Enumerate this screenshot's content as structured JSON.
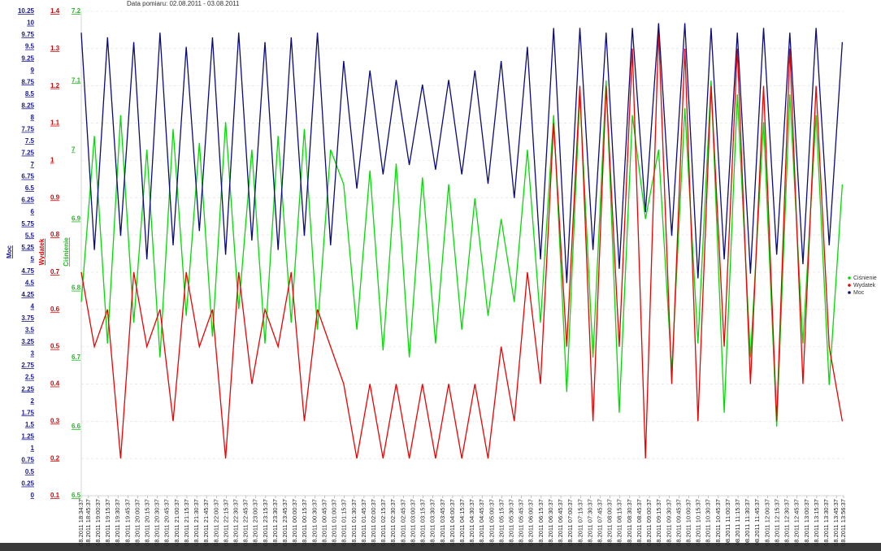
{
  "chart_data": {
    "type": "line",
    "subtitle": "Data pomiaru: 02.08.2011 - 03.08.2011",
    "xlim": [
      0,
      1162
    ],
    "x": [
      0,
      20,
      40,
      60,
      80,
      100,
      120,
      140,
      160,
      180,
      200,
      220,
      240,
      260,
      280,
      300,
      320,
      340,
      360,
      380,
      400,
      420,
      440,
      460,
      480,
      500,
      520,
      540,
      560,
      580,
      600,
      620,
      640,
      660,
      680,
      700,
      720,
      740,
      760,
      780,
      800,
      820,
      840,
      860,
      880,
      900,
      920,
      940,
      960,
      980,
      1000,
      1020,
      1040,
      1060,
      1080,
      1100,
      1120,
      1140,
      1160
    ],
    "xticks": [
      {
        "value": 0,
        "label": "08.2011 18:34:37"
      },
      {
        "value": 11,
        "label": "08.2011 18:45:37"
      },
      {
        "value": 26,
        "label": "08.2011 19:00:37"
      },
      {
        "value": 41,
        "label": "08.2011 19:15:37"
      },
      {
        "value": 56,
        "label": "08.2011 19:30:37"
      },
      {
        "value": 71,
        "label": "08.2011 19:45:37"
      },
      {
        "value": 86,
        "label": "08.2011 20:00:37"
      },
      {
        "value": 101,
        "label": "08.2011 20:15:37"
      },
      {
        "value": 116,
        "label": "08.2011 20:30:37"
      },
      {
        "value": 131,
        "label": "08.2011 20:45:37"
      },
      {
        "value": 146,
        "label": "08.2011 21:00:37"
      },
      {
        "value": 161,
        "label": "08.2011 21:15:37"
      },
      {
        "value": 176,
        "label": "08.2011 21:30:37"
      },
      {
        "value": 191,
        "label": "08.2011 21:45:37"
      },
      {
        "value": 206,
        "label": "08.2011 22:00:37"
      },
      {
        "value": 221,
        "label": "08.2011 22:15:37"
      },
      {
        "value": 236,
        "label": "08.2011 22:30:37"
      },
      {
        "value": 251,
        "label": "08.2011 22:45:37"
      },
      {
        "value": 266,
        "label": "08.2011 23:00:37"
      },
      {
        "value": 281,
        "label": "08.2011 23:15:37"
      },
      {
        "value": 296,
        "label": "08.2011 23:30:37"
      },
      {
        "value": 311,
        "label": "08.2011 23:45:37"
      },
      {
        "value": 326,
        "label": "08.2011 00:00:37"
      },
      {
        "value": 341,
        "label": "08.2011 00:15:37"
      },
      {
        "value": 356,
        "label": "08.2011 00:30:37"
      },
      {
        "value": 371,
        "label": "08.2011 00:45:37"
      },
      {
        "value": 386,
        "label": "08.2011 01:00:37"
      },
      {
        "value": 401,
        "label": "08.2011 01:15:37"
      },
      {
        "value": 416,
        "label": "08.2011 01:30:37"
      },
      {
        "value": 431,
        "label": "08.2011 01:45:37"
      },
      {
        "value": 446,
        "label": "08.2011 02:00:37"
      },
      {
        "value": 461,
        "label": "08.2011 02:15:37"
      },
      {
        "value": 476,
        "label": "08.2011 02:30:37"
      },
      {
        "value": 491,
        "label": "08.2011 02:45:37"
      },
      {
        "value": 506,
        "label": "08.2011 03:00:37"
      },
      {
        "value": 521,
        "label": "08.2011 03:15:37"
      },
      {
        "value": 536,
        "label": "08.2011 03:30:37"
      },
      {
        "value": 551,
        "label": "08.2011 03:45:37"
      },
      {
        "value": 566,
        "label": "08.2011 04:00:37"
      },
      {
        "value": 581,
        "label": "08.2011 04:15:37"
      },
      {
        "value": 596,
        "label": "08.2011 04:30:37"
      },
      {
        "value": 611,
        "label": "08.2011 04:45:37"
      },
      {
        "value": 626,
        "label": "08.2011 05:00:37"
      },
      {
        "value": 641,
        "label": "08.2011 05:15:37"
      },
      {
        "value": 656,
        "label": "08.2011 05:30:37"
      },
      {
        "value": 671,
        "label": "08.2011 05:45:37"
      },
      {
        "value": 686,
        "label": "08.2011 06:00:37"
      },
      {
        "value": 701,
        "label": "08.2011 06:15:37"
      },
      {
        "value": 716,
        "label": "08.2011 06:30:37"
      },
      {
        "value": 731,
        "label": "08.2011 06:45:37"
      },
      {
        "value": 746,
        "label": "08.2011 07:00:37"
      },
      {
        "value": 761,
        "label": "08.2011 07:15:37"
      },
      {
        "value": 776,
        "label": "08.2011 07:30:37"
      },
      {
        "value": 791,
        "label": "08.2011 07:45:37"
      },
      {
        "value": 806,
        "label": "08.2011 08:00:37"
      },
      {
        "value": 821,
        "label": "08.2011 08:15:37"
      },
      {
        "value": 836,
        "label": "08.2011 08:30:37"
      },
      {
        "value": 851,
        "label": "08.2011 08:45:37"
      },
      {
        "value": 866,
        "label": "08.2011 09:00:37"
      },
      {
        "value": 881,
        "label": "08.2011 09:15:37"
      },
      {
        "value": 896,
        "label": "08.2011 09:30:37"
      },
      {
        "value": 911,
        "label": "08.2011 09:45:37"
      },
      {
        "value": 926,
        "label": "08.2011 10:00:37"
      },
      {
        "value": 941,
        "label": "08.2011 10:15:37"
      },
      {
        "value": 956,
        "label": "08.2011 10:30:37"
      },
      {
        "value": 971,
        "label": "08.2011 10:45:37"
      },
      {
        "value": 986,
        "label": "08.2011 11:00:37"
      },
      {
        "value": 1001,
        "label": "08.2011 11:15:37"
      },
      {
        "value": 1016,
        "label": "08.2011 11:30:37"
      },
      {
        "value": 1031,
        "label": "08.2011 11:45:37"
      },
      {
        "value": 1046,
        "label": "08.2011 12:00:37"
      },
      {
        "value": 1061,
        "label": "08.2011 12:15:37"
      },
      {
        "value": 1076,
        "label": "08.2011 12:30:37"
      },
      {
        "value": 1091,
        "label": "08.2011 12:45:37"
      },
      {
        "value": 1106,
        "label": "08.2011 13:00:37"
      },
      {
        "value": 1121,
        "label": "08.2011 13:15:37"
      },
      {
        "value": 1136,
        "label": "08.2011 13:30:37"
      },
      {
        "value": 1151,
        "label": "08.2011 13:45:37"
      },
      {
        "value": 1162,
        "label": "08.2011 13:56:37"
      }
    ],
    "axes": [
      {
        "name": "Moc",
        "color": "#1a1a8c",
        "ylim": [
          0,
          10.25
        ],
        "yticks": [
          0,
          0.25,
          0.5,
          0.75,
          1,
          1.25,
          1.5,
          1.75,
          2,
          2.25,
          2.5,
          2.75,
          3,
          3.25,
          3.5,
          3.75,
          4,
          4.25,
          4.5,
          4.75,
          5,
          5.25,
          5.5,
          5.75,
          6,
          6.25,
          6.5,
          6.75,
          7,
          7.25,
          7.5,
          7.75,
          8,
          8.25,
          8.5,
          8.75,
          9,
          9.25,
          9.5,
          9.75,
          10,
          10.25
        ]
      },
      {
        "name": "Wydatek",
        "color": "#dd0000",
        "ylim": [
          0.1,
          1.4
        ],
        "yticks": [
          0.1,
          0.2,
          0.3,
          0.4,
          0.5,
          0.6,
          0.7,
          0.8,
          0.9,
          1,
          1.1,
          1.2,
          1.3,
          1.4
        ],
        "grid": true
      },
      {
        "name": "Ciśnienie",
        "color": "#22bb22",
        "ylim": [
          6.5,
          7.2
        ],
        "yticks": [
          6.5,
          6.6,
          6.7,
          6.8,
          6.9,
          7,
          7.1,
          7.2
        ]
      }
    ],
    "series": [
      {
        "name": "Ciśnienie",
        "color": "#00dd00",
        "axis": 2,
        "values": [
          6.78,
          7.02,
          6.72,
          7.05,
          6.75,
          7.0,
          6.7,
          7.03,
          6.76,
          7.01,
          6.73,
          7.04,
          6.77,
          7.0,
          6.72,
          7.02,
          6.75,
          7.03,
          6.74,
          7.0,
          6.95,
          6.74,
          6.97,
          6.71,
          6.98,
          6.7,
          6.96,
          6.72,
          6.95,
          6.74,
          6.93,
          6.76,
          6.9,
          6.78,
          7.0,
          6.75,
          7.05,
          6.65,
          7.08,
          6.7,
          7.1,
          6.62,
          7.05,
          6.9,
          7.0,
          6.68,
          7.06,
          6.72,
          7.1,
          6.62,
          7.08,
          6.7,
          7.04,
          6.6,
          7.08,
          6.72,
          7.05,
          6.66,
          6.95
        ]
      },
      {
        "name": "Wydatek",
        "color": "#ee0000",
        "axis": 1,
        "values": [
          0.7,
          0.5,
          0.6,
          0.2,
          0.7,
          0.5,
          0.6,
          0.3,
          0.7,
          0.5,
          0.6,
          0.2,
          0.7,
          0.4,
          0.6,
          0.5,
          0.7,
          0.3,
          0.6,
          0.5,
          0.4,
          0.2,
          0.4,
          0.2,
          0.4,
          0.2,
          0.4,
          0.2,
          0.4,
          0.2,
          0.4,
          0.2,
          0.5,
          0.3,
          0.7,
          0.4,
          1.1,
          0.5,
          1.2,
          0.3,
          1.2,
          0.5,
          1.3,
          0.2,
          1.35,
          0.4,
          1.3,
          0.3,
          1.2,
          0.5,
          1.3,
          0.4,
          1.2,
          0.3,
          1.3,
          0.4,
          1.2,
          0.5,
          0.3
        ]
      },
      {
        "name": "Moc",
        "color": "#0a0a7a",
        "axis": 0,
        "values": [
          9.8,
          5.2,
          9.7,
          5.5,
          9.6,
          5.0,
          9.8,
          5.3,
          9.5,
          5.6,
          9.7,
          5.1,
          9.8,
          5.4,
          9.6,
          5.2,
          9.7,
          5.5,
          9.8,
          5.3,
          9.2,
          6.5,
          9.0,
          6.8,
          8.8,
          7.0,
          8.7,
          6.9,
          8.8,
          6.8,
          9.0,
          6.6,
          9.2,
          6.3,
          9.5,
          5.0,
          9.9,
          4.5,
          9.9,
          5.2,
          9.8,
          4.8,
          9.9,
          6.0,
          10.0,
          5.5,
          10.0,
          4.6,
          9.9,
          5.0,
          9.8,
          4.7,
          9.9,
          5.1,
          9.8,
          4.9,
          9.9,
          5.3,
          9.6
        ]
      }
    ]
  }
}
